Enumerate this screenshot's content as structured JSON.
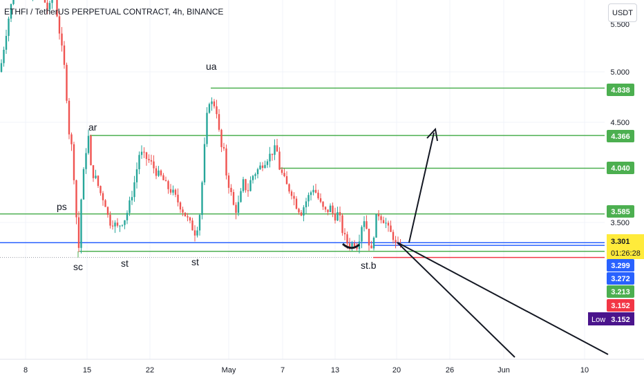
{
  "header": {
    "title": "ETHFI / TetherUS PERPETUAL CONTRACT, 4h, BINANCE",
    "currency_button": "USDT"
  },
  "colors": {
    "up": "#26a69a",
    "down": "#ef5350",
    "green_line": "#4caf50",
    "blue_line": "#2962ff",
    "red_line": "#f23645",
    "current_price": "#ffeb3b",
    "low_label": "#4a148c"
  },
  "chart_data": {
    "type": "candlestick",
    "title": "ETHFI / TetherUS PERPETUAL CONTRACT, 4h, BINANCE",
    "y_axis": {
      "ticks": [
        "5.000",
        "4.500",
        "3.500"
      ],
      "partial_top_tick": "5.500"
    },
    "x_axis": {
      "ticks": [
        "8",
        "15",
        "22",
        "May",
        "7",
        "13",
        "20",
        "26",
        "Jun",
        "10"
      ]
    },
    "horizontal_levels": [
      {
        "value": 4.838,
        "label": "4.838",
        "color": "green"
      },
      {
        "value": 4.366,
        "label": "4.366",
        "color": "green"
      },
      {
        "value": 4.04,
        "label": "4.040",
        "color": "green"
      },
      {
        "value": 3.585,
        "label": "3.585",
        "color": "green"
      },
      {
        "value": 3.299,
        "label": "3.299",
        "color": "blue"
      },
      {
        "value": 3.272,
        "label": "3.272",
        "color": "blue"
      },
      {
        "value": 3.213,
        "label": "3.213",
        "color": "green"
      },
      {
        "value": 3.152,
        "label": "3.152",
        "color": "red"
      }
    ],
    "current_price": {
      "value": 3.301,
      "label": "3.301",
      "countdown": "01:26:28"
    },
    "low_marker": {
      "label": "Low",
      "value": "3.152"
    },
    "annotations": [
      "ps",
      "sc",
      "ar",
      "st",
      "st",
      "ua",
      "st.b"
    ],
    "price_path": [
      [
        0,
        5.0
      ],
      [
        8,
        5.35
      ],
      [
        14,
        5.6
      ],
      [
        22,
        5.85
      ],
      [
        30,
        6.0
      ],
      [
        38,
        5.8
      ],
      [
        46,
        5.7
      ],
      [
        54,
        5.9
      ],
      [
        62,
        5.75
      ],
      [
        70,
        5.6
      ],
      [
        78,
        5.8
      ],
      [
        86,
        5.4
      ],
      [
        94,
        5.0
      ],
      [
        100,
        4.4
      ],
      [
        105,
        4.2
      ],
      [
        110,
        3.6
      ],
      [
        114,
        3.25
      ],
      [
        118,
        3.8
      ],
      [
        124,
        4.2
      ],
      [
        128,
        4.35
      ],
      [
        132,
        4.0
      ],
      [
        138,
        3.95
      ],
      [
        145,
        3.8
      ],
      [
        152,
        3.7
      ],
      [
        158,
        3.5
      ],
      [
        164,
        3.5
      ],
      [
        170,
        3.45
      ],
      [
        176,
        3.5
      ],
      [
        182,
        3.55
      ],
      [
        190,
        3.75
      ],
      [
        196,
        3.95
      ],
      [
        202,
        4.2
      ],
      [
        210,
        4.15
      ],
      [
        218,
        4.1
      ],
      [
        226,
        4.0
      ],
      [
        234,
        3.95
      ],
      [
        242,
        3.85
      ],
      [
        250,
        3.8
      ],
      [
        258,
        3.7
      ],
      [
        266,
        3.6
      ],
      [
        274,
        3.5
      ],
      [
        282,
        3.4
      ],
      [
        288,
        3.5
      ],
      [
        292,
        3.85
      ],
      [
        296,
        4.25
      ],
      [
        300,
        4.6
      ],
      [
        304,
        4.75
      ],
      [
        308,
        4.65
      ],
      [
        312,
        4.7
      ],
      [
        316,
        4.45
      ],
      [
        320,
        4.25
      ],
      [
        324,
        4.2
      ],
      [
        328,
        3.95
      ],
      [
        334,
        3.8
      ],
      [
        340,
        3.6
      ],
      [
        346,
        3.7
      ],
      [
        352,
        3.9
      ],
      [
        358,
        3.8
      ],
      [
        364,
        3.95
      ],
      [
        370,
        4.0
      ],
      [
        376,
        4.05
      ],
      [
        382,
        4.1
      ],
      [
        388,
        4.15
      ],
      [
        394,
        4.2
      ],
      [
        400,
        4.25
      ],
      [
        404,
        4.05
      ],
      [
        410,
        3.95
      ],
      [
        416,
        3.85
      ],
      [
        422,
        3.8
      ],
      [
        430,
        3.65
      ],
      [
        436,
        3.6
      ],
      [
        442,
        3.7
      ],
      [
        448,
        3.78
      ],
      [
        454,
        3.85
      ],
      [
        460,
        3.75
      ],
      [
        466,
        3.65
      ],
      [
        472,
        3.6
      ],
      [
        478,
        3.65
      ],
      [
        484,
        3.55
      ],
      [
        490,
        3.6
      ],
      [
        496,
        3.4
      ],
      [
        502,
        3.3
      ],
      [
        508,
        3.28
      ],
      [
        514,
        3.3
      ],
      [
        518,
        3.25
      ],
      [
        522,
        3.45
      ],
      [
        528,
        3.55
      ],
      [
        534,
        3.3
      ],
      [
        538,
        3.2
      ],
      [
        542,
        3.45
      ],
      [
        546,
        3.6
      ],
      [
        552,
        3.55
      ],
      [
        558,
        3.5
      ],
      [
        564,
        3.4
      ],
      [
        568,
        3.38
      ],
      [
        572,
        3.28
      ],
      [
        576,
        3.25
      ],
      [
        580,
        3.3
      ]
    ]
  },
  "drawings": {
    "up_arrow": {
      "from": [
        3.301,
        590
      ],
      "to": [
        4.5,
        630
      ]
    },
    "down_lines": [
      {
        "from_price": 3.301,
        "to_x": 745,
        "to_price": 2.3
      },
      {
        "from_price": 3.301,
        "to_x": 880,
        "to_price": 2.35
      }
    ]
  }
}
